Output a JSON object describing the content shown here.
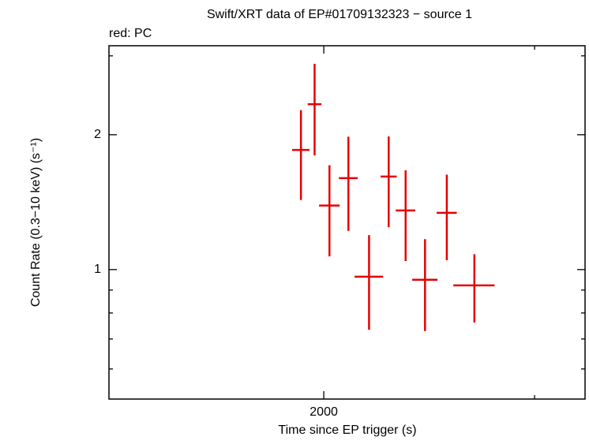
{
  "chart_data": {
    "type": "errorbar",
    "title": "Swift/XRT data of EP#01709132323 − source 1",
    "subtitle": "red: PC",
    "xlabel": "Time since EP trigger (s)",
    "ylabel": "Count Rate (0.3−10 keV) (s⁻¹)",
    "xlog": true,
    "ylog": true,
    "xlim": [
      1323,
      3306
    ],
    "ylim": [
      0.514,
      3.16
    ],
    "xticks": [
      2000
    ],
    "xminor_ticks": [
      3000
    ],
    "yticks": [
      1,
      2
    ],
    "yminor_ticks": [
      0.6,
      0.7,
      0.8,
      0.9,
      3
    ],
    "series": [
      {
        "name": "PC",
        "color": "#e60000",
        "x": [
          1914,
          1965,
          2022,
          2097,
          2182,
          2266,
          2341,
          2430,
          2534,
          2672
        ],
        "xerr": [
          32,
          26,
          40,
          38,
          60,
          35,
          44,
          59,
          49,
          106
        ],
        "values": [
          1.85,
          2.34,
          1.39,
          1.6,
          0.964,
          1.613,
          1.355,
          0.949,
          1.339,
          0.922
        ],
        "yerr": [
          0.42,
          0.54,
          0.32,
          0.38,
          0.23,
          0.37,
          0.31,
          0.22,
          0.29,
          0.16
        ]
      }
    ]
  }
}
